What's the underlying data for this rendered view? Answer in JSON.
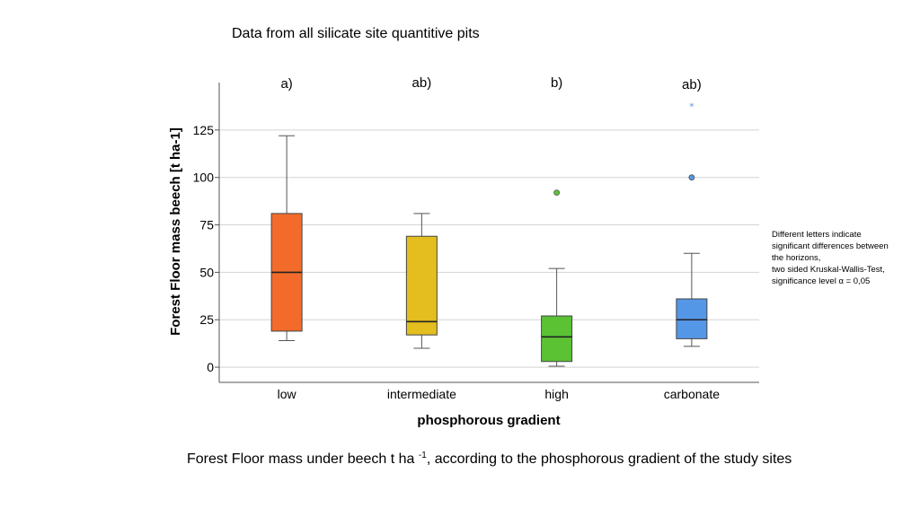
{
  "slide": {
    "heading": "Data from all silicate site quantitive pits",
    "note_lines": [
      "Different letters indicate",
      "significant differences between",
      "the horizons,",
      "two sided Kruskal-Wallis-Test,",
      "significance level α = 0,05"
    ],
    "caption_pre": "Forest Floor mass under beech t ha ",
    "caption_sup": "-1",
    "caption_post": ", according to the phosphorous gradient of the study sites"
  },
  "chart_data": {
    "type": "box",
    "xlabel": "phosphorous gradient",
    "ylabel": "Forest Floor mass beech [t ha-1]",
    "ylim": [
      -8,
      150
    ],
    "yticks": [
      0,
      25,
      50,
      75,
      100,
      125
    ],
    "grid": true,
    "categories": [
      "low",
      "intermediate",
      "high",
      "carbonate"
    ],
    "significance_letters": [
      "a)",
      "ab)",
      "b)",
      "ab)"
    ],
    "colors": [
      "#f26b2b",
      "#e4bd1f",
      "#5bc234",
      "#5497e6"
    ],
    "boxes": [
      {
        "min": 14,
        "q1": 19,
        "median": 50,
        "q3": 81,
        "max": 122,
        "outliers": [],
        "extremes": []
      },
      {
        "min": 10,
        "q1": 17,
        "median": 24,
        "q3": 69,
        "max": 81,
        "outliers": [],
        "extremes": []
      },
      {
        "min": 0.5,
        "q1": 3,
        "median": 16,
        "q3": 27,
        "max": 52,
        "outliers": [
          92
        ],
        "extremes": []
      },
      {
        "min": 11,
        "q1": 15,
        "median": 25,
        "q3": 36,
        "max": 60,
        "outliers": [
          100
        ],
        "extremes": [
          138
        ]
      }
    ]
  }
}
